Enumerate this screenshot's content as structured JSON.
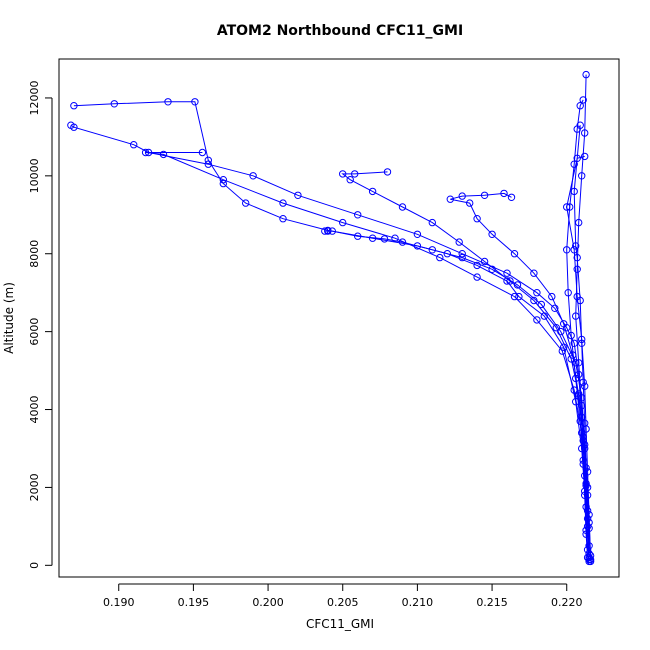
{
  "chart_data": {
    "type": "line",
    "title": "ATOM2 Northbound CFC11_GMI",
    "xlabel": "CFC11_GMI",
    "ylabel": "Altitude (m)",
    "xlim": [
      0.186,
      0.2235
    ],
    "ylim": [
      -300,
      13000
    ],
    "x_ticks": [
      0.19,
      0.195,
      0.2,
      0.205,
      0.21,
      0.215,
      0.22
    ],
    "x_tick_labels": [
      "0.190",
      "0.195",
      "0.200",
      "0.205",
      "0.210",
      "0.215",
      "0.220"
    ],
    "y_ticks": [
      0,
      2000,
      4000,
      6000,
      8000,
      10000,
      12000
    ],
    "y_tick_labels": [
      "0",
      "2000",
      "4000",
      "6000",
      "8000",
      "10000",
      "12000"
    ],
    "grid": false,
    "marker": "open-circle",
    "series_color": "#0000ff",
    "series": [
      {
        "x": [
          0.2215,
          0.2213,
          0.2212,
          0.221,
          0.2206,
          0.2198,
          0.2185,
          0.2168,
          0.216,
          0.214,
          0.212,
          0.21,
          0.207,
          0.204,
          0.201,
          0.1985,
          0.197,
          0.196,
          0.1951,
          0.1933,
          0.1897,
          0.187
        ],
        "y": [
          150,
          900,
          1900,
          3000,
          4200,
          5600,
          6400,
          6900,
          7300,
          7700,
          8000,
          8200,
          8400,
          8600,
          8900,
          9300,
          9800,
          10400,
          11900,
          11900,
          11850,
          11800
        ]
      },
      {
        "x": [
          0.2214,
          0.2213,
          0.2212,
          0.2211,
          0.221,
          0.2208,
          0.2205,
          0.22,
          0.2192,
          0.218,
          0.216,
          0.213,
          0.21,
          0.206,
          0.202,
          0.199,
          0.196,
          0.192,
          0.191,
          0.187,
          0.1868
        ],
        "y": [
          200,
          800,
          1800,
          2700,
          3800,
          4900,
          5700,
          6100,
          6600,
          7000,
          7500,
          8000,
          8500,
          9000,
          9500,
          10000,
          10300,
          10600,
          10800,
          11250,
          11300
        ]
      },
      {
        "x": [
          0.2215,
          0.2214,
          0.2212,
          0.221,
          0.2205,
          0.2197,
          0.218,
          0.2165,
          0.214,
          0.2115,
          0.2085,
          0.205,
          0.201,
          0.197,
          0.193,
          0.1918,
          0.1956
        ],
        "y": [
          300,
          1200,
          2300,
          3400,
          4500,
          5500,
          6300,
          6900,
          7400,
          7900,
          8400,
          8800,
          9300,
          9900,
          10550,
          10600,
          10600
        ]
      },
      {
        "x": [
          0.2215,
          0.2214,
          0.2213,
          0.2211,
          0.2208,
          0.2203,
          0.2193,
          0.2178,
          0.2162,
          0.2145,
          0.2128,
          0.211,
          0.209,
          0.207,
          0.2055,
          0.205,
          0.2058,
          0.208
        ],
        "y": [
          100,
          1000,
          2100,
          3300,
          4400,
          5300,
          6100,
          6800,
          7300,
          7800,
          8300,
          8800,
          9200,
          9600,
          9900,
          10050,
          10050,
          10100
        ]
      },
      {
        "x": [
          0.2216,
          0.2215,
          0.2214,
          0.2212,
          0.221,
          0.2206,
          0.2196,
          0.2183,
          0.2167,
          0.215,
          0.213,
          0.211,
          0.209,
          0.2078,
          0.206,
          0.2043,
          0.2038,
          0.204
        ],
        "y": [
          250,
          1100,
          2000,
          3100,
          4300,
          5200,
          6000,
          6700,
          7200,
          7600,
          7900,
          8100,
          8300,
          8380,
          8450,
          8580,
          8580,
          8580
        ]
      },
      {
        "x": [
          0.2216,
          0.2215,
          0.2213,
          0.2211,
          0.2208,
          0.2204,
          0.2198,
          0.219,
          0.2178,
          0.2165,
          0.215,
          0.214,
          0.2135,
          0.2122,
          0.213,
          0.2145,
          0.2158,
          0.2163
        ],
        "y": [
          150,
          950,
          2050,
          3200,
          4350,
          5400,
          6200,
          6900,
          7500,
          8000,
          8500,
          8900,
          9300,
          9400,
          9480,
          9500,
          9550,
          9450
        ]
      },
      {
        "x": [
          0.2214,
          0.2213,
          0.2211,
          0.2209,
          0.2206,
          0.2203,
          0.2201,
          0.22,
          0.2202,
          0.2205,
          0.2207,
          0.2209,
          0.2211
        ],
        "y": [
          400,
          1500,
          2600,
          3700,
          4800,
          5900,
          7000,
          8100,
          9200,
          10300,
          11200,
          11800,
          11950
        ]
      },
      {
        "x": [
          0.2215,
          0.2214,
          0.2212,
          0.221,
          0.2208,
          0.2206,
          0.2207,
          0.2208,
          0.221,
          0.2212,
          0.2213
        ],
        "y": [
          500,
          1800,
          3000,
          4100,
          5200,
          6400,
          7600,
          8800,
          10000,
          11100,
          12600
        ]
      },
      {
        "x": [
          0.2216,
          0.2215,
          0.2214,
          0.2213,
          0.2212,
          0.221,
          0.2207,
          0.2205,
          0.22,
          0.2207,
          0.2212
        ],
        "y": [
          100,
          1300,
          2400,
          3500,
          4600,
          5800,
          6900,
          8100,
          9200,
          10450,
          10500
        ]
      },
      {
        "x": [
          0.2215,
          0.2214,
          0.2213,
          0.2212,
          0.2211,
          0.221,
          0.2209,
          0.2207,
          0.2206,
          0.2205,
          0.2209
        ],
        "y": [
          200,
          1400,
          2500,
          3650,
          4700,
          5700,
          6800,
          7900,
          8200,
          9600,
          11300
        ]
      }
    ]
  }
}
